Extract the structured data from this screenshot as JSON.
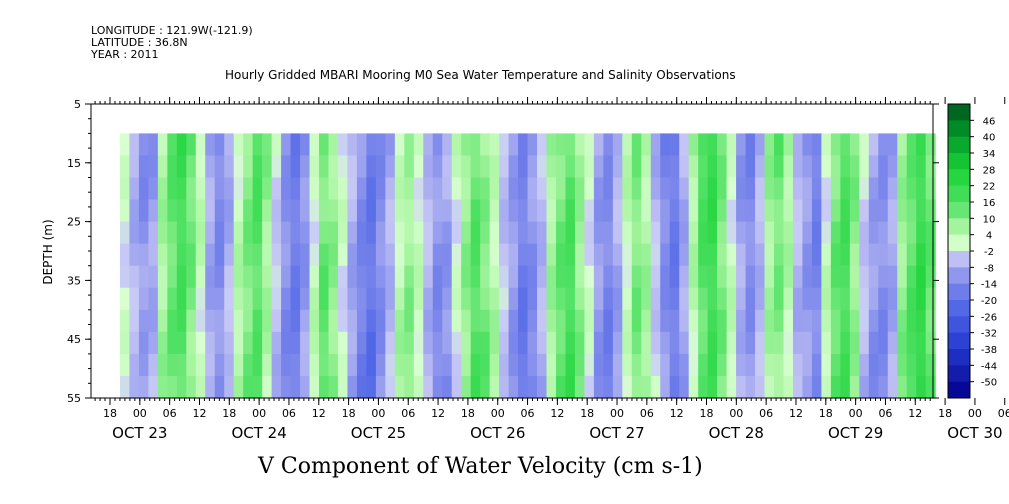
{
  "header": {
    "longitude": "LONGITUDE : 121.9W(-121.9)",
    "latitude": "LATITUDE : 36.8N",
    "year": "YEAR : 2011"
  },
  "chart_data": {
    "type": "heatmap",
    "title": "Hourly Gridded MBARI Mooring M0 Sea Water Temperature and Salinity Observations",
    "bottom_title": "V Component of Water Velocity (cm s-1)",
    "ylabel": "DEPTH (m)",
    "ylim": [
      55,
      5
    ],
    "yticks": [
      "5",
      "15",
      "25",
      "35",
      "45",
      "55"
    ],
    "hour_ticks": [
      "18",
      "00",
      "06",
      "12",
      "18",
      "00",
      "06",
      "12",
      "18",
      "00",
      "06",
      "12",
      "18",
      "00",
      "06",
      "12",
      "18",
      "00",
      "06",
      "12",
      "18",
      "00",
      "06",
      "12",
      "18",
      "00",
      "06",
      "12",
      "18",
      "00",
      "06",
      "12"
    ],
    "day_labels": [
      "OCT 23",
      "OCT 24",
      "OCT 25",
      "OCT 26",
      "OCT 27",
      "OCT 28",
      "OCT 29",
      "OCT 30"
    ],
    "x_range": [
      "2011-10-23T12:00",
      "2011-10-30T17:00"
    ],
    "data_x_range": [
      "2011-10-23T20:00",
      "2011-10-30T16:00"
    ],
    "data_depth_range": [
      10,
      55
    ],
    "colorbar": {
      "labels": [
        "46",
        "40",
        "34",
        "28",
        "22",
        "16",
        "10",
        "4",
        "-2",
        "-8",
        "-14",
        "-20",
        "-26",
        "-32",
        "-38",
        "-44",
        "-50"
      ],
      "min": -50,
      "max": 50,
      "colors": {
        "strong_positive": "#00551f",
        "positive": "#18d235",
        "weak_positive": "#a8f5a0",
        "near_zero_positive": "#d8ffd0",
        "near_zero_negative": "#c4c4f4",
        "weak_negative": "#a0a0ee",
        "negative": "#4f66e6",
        "strong_negative": "#00008a"
      }
    },
    "velocity_columns_cm_s": [
      2,
      -4,
      -8,
      -6,
      8,
      14,
      18,
      12,
      4,
      -6,
      -10,
      -4,
      6,
      12,
      16,
      8,
      -2,
      -10,
      -14,
      -8,
      4,
      14,
      10,
      2,
      -6,
      -12,
      -16,
      -10,
      -4,
      6,
      10,
      4,
      -4,
      -10,
      -8,
      2,
      10,
      16,
      12,
      6,
      -2,
      -8,
      -14,
      -10,
      -4,
      8,
      14,
      18,
      10,
      2,
      -8,
      -12,
      -6,
      4,
      12,
      8,
      -2,
      -10,
      -14,
      -6,
      6,
      16,
      20,
      12,
      4,
      -6,
      -10,
      -4,
      8,
      12,
      6,
      -4,
      -8,
      -12,
      4,
      14,
      18,
      10,
      -2,
      -8,
      -10,
      -6,
      10,
      16,
      22,
      14
    ]
  }
}
